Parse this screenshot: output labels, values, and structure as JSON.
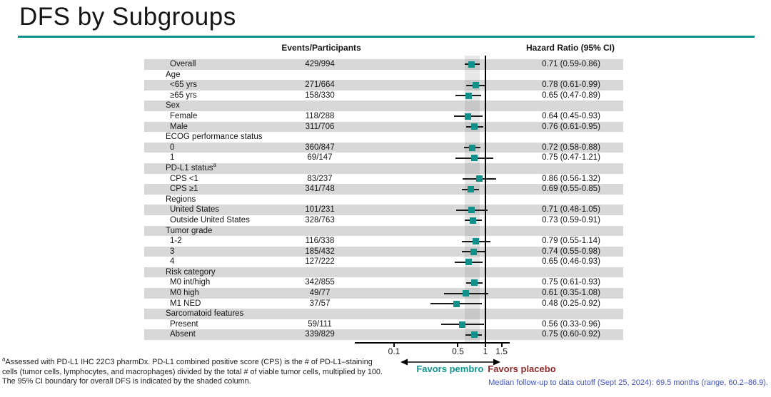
{
  "title": "DFS by Subgroups",
  "columns": {
    "events_header": "Events/Participants",
    "hr_header": "Hazard Ratio (95% CI)"
  },
  "colors": {
    "accent_rule": "#0a8f8c",
    "marker_teal": "#12908a",
    "favors_pembro_text": "#0f968f",
    "favors_placebo_text": "#8c2b2b",
    "row_band_gray": "#d8d8d8",
    "median_note_blue": "#4355c4"
  },
  "chart_data": {
    "type": "forest",
    "x_scale": "log",
    "x_ticks": [
      "0.1",
      "0.5",
      "1",
      "1.5"
    ],
    "x_tick_values": [
      0.1,
      0.5,
      1,
      1.5
    ],
    "x_axis_range": [
      0.037,
      1.81
    ],
    "reference_line": 1,
    "shaded_band": {
      "low": 0.59,
      "high": 0.86
    },
    "favors_left": "Favors pembro",
    "favors_right": "Favors placebo",
    "rows": [
      {
        "label": "Overall",
        "header": false,
        "events": "429/994",
        "hr": 0.71,
        "low": 0.59,
        "high": 0.86,
        "hr_text": "0.71 (0.59-0.86)"
      },
      {
        "label": "Age",
        "header": true
      },
      {
        "label": "<65 yrs",
        "header": false,
        "events": "271/664",
        "hr": 0.78,
        "low": 0.61,
        "high": 0.99,
        "hr_text": "0.78 (0.61-0.99)"
      },
      {
        "label": "≥65 yrs",
        "header": false,
        "events": "158/330",
        "hr": 0.65,
        "low": 0.47,
        "high": 0.89,
        "hr_text": "0.65 (0.47-0.89)"
      },
      {
        "label": "Sex",
        "header": true
      },
      {
        "label": "Female",
        "header": false,
        "events": "118/288",
        "hr": 0.64,
        "low": 0.45,
        "high": 0.93,
        "hr_text": "0.64 (0.45-0.93)"
      },
      {
        "label": "Male",
        "header": false,
        "events": "311/706",
        "hr": 0.76,
        "low": 0.61,
        "high": 0.95,
        "hr_text": "0.76 (0.61-0.95)"
      },
      {
        "label": "ECOG performance status",
        "header": true
      },
      {
        "label": "0",
        "header": false,
        "events": "360/847",
        "hr": 0.72,
        "low": 0.58,
        "high": 0.88,
        "hr_text": "0.72 (0.58-0.88)"
      },
      {
        "label": "1",
        "header": false,
        "events": "69/147",
        "hr": 0.75,
        "low": 0.47,
        "high": 1.21,
        "hr_text": "0.75 (0.47-1.21)"
      },
      {
        "label": "PD-L1 status",
        "sup": "a",
        "header": true
      },
      {
        "label": "CPS <1",
        "header": false,
        "events": "83/237",
        "hr": 0.86,
        "low": 0.56,
        "high": 1.32,
        "hr_text": "0.86 (0.56-1.32)"
      },
      {
        "label": "CPS ≥1",
        "header": false,
        "events": "341/748",
        "hr": 0.69,
        "low": 0.55,
        "high": 0.85,
        "hr_text": "0.69 (0.55-0.85)"
      },
      {
        "label": "Regions",
        "header": true
      },
      {
        "label": "United States",
        "header": false,
        "events": "101/231",
        "hr": 0.71,
        "low": 0.48,
        "high": 1.05,
        "hr_text": "0.71 (0.48-1.05)"
      },
      {
        "label": "Outside United States",
        "header": false,
        "events": "328/763",
        "hr": 0.73,
        "low": 0.59,
        "high": 0.91,
        "hr_text": "0.73 (0.59-0.91)"
      },
      {
        "label": "Tumor grade",
        "header": true
      },
      {
        "label": "1-2",
        "header": false,
        "events": "116/338",
        "hr": 0.79,
        "low": 0.55,
        "high": 1.14,
        "hr_text": "0.79 (0.55-1.14)"
      },
      {
        "label": "3",
        "header": false,
        "events": "185/432",
        "hr": 0.74,
        "low": 0.55,
        "high": 0.98,
        "hr_text": "0.74 (0.55-0.98)"
      },
      {
        "label": "4",
        "header": false,
        "events": "127/222",
        "hr": 0.65,
        "low": 0.46,
        "high": 0.93,
        "hr_text": "0.65 (0.46-0.93)"
      },
      {
        "label": "Risk category",
        "header": true
      },
      {
        "label": "M0 int/high",
        "header": false,
        "events": "342/855",
        "hr": 0.75,
        "low": 0.61,
        "high": 0.93,
        "hr_text": "0.75 (0.61-0.93)"
      },
      {
        "label": "M0 high",
        "header": false,
        "events": "49/77",
        "hr": 0.61,
        "low": 0.35,
        "high": 1.08,
        "hr_text": "0.61 (0.35-1.08)"
      },
      {
        "label": "M1 NED",
        "header": false,
        "events": "37/57",
        "hr": 0.48,
        "low": 0.25,
        "high": 0.92,
        "hr_text": "0.48 (0.25-0.92)"
      },
      {
        "label": "Sarcomatoid features",
        "header": true
      },
      {
        "label": "Present",
        "header": false,
        "events": "59/111",
        "hr": 0.56,
        "low": 0.33,
        "high": 0.96,
        "hr_text": "0.56 (0.33-0.96)"
      },
      {
        "label": "Absent",
        "header": false,
        "events": "339/829",
        "hr": 0.75,
        "low": 0.6,
        "high": 0.92,
        "hr_text": "0.75 (0.60-0.92)"
      }
    ]
  },
  "footnotes": {
    "sup": "a",
    "line1": "Assessed with PD-L1 IHC 22C3 pharmDx. PD-L1 combined positive score (CPS) is the # of PD-L1–staining",
    "line2": "cells (tumor cells, lymphocytes, and macrophages) divided by the total # of viable tumor cells, multiplied by 100.",
    "line3": "The 95% CI boundary for overall DFS is indicated by the shaded column."
  },
  "median_note": "Median follow-up to data cutoff (Sept 25, 2024): 69.5 months (range, 60.2–86.9)."
}
